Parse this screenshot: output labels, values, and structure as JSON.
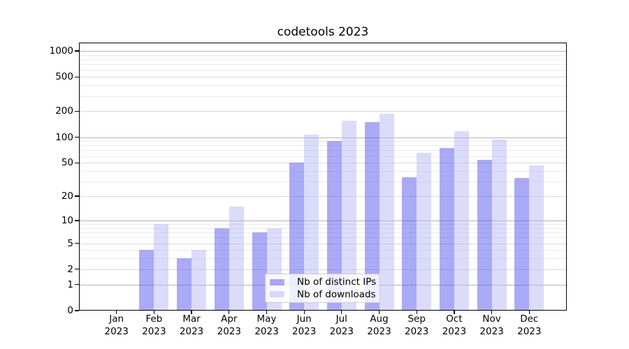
{
  "title": "codetools 2023",
  "chart_data": {
    "type": "bar",
    "title": "codetools 2023",
    "categories": [
      "Jan",
      "Feb",
      "Mar",
      "Apr",
      "May",
      "Jun",
      "Jul",
      "Aug",
      "Sep",
      "Oct",
      "Nov",
      "Dec"
    ],
    "category_year": "2023",
    "series": [
      {
        "name": "Nb of distinct IPs",
        "color": "rgba(85,85,240,0.5)",
        "solid_color": "#aaaaf8",
        "values": [
          0,
          4,
          3,
          8,
          7,
          50,
          90,
          151,
          34,
          75,
          54,
          33
        ]
      },
      {
        "name": "Nb of downloads",
        "color": "rgba(183,183,245,0.5)",
        "solid_color": "#dbdbfa",
        "values": [
          0,
          9,
          4,
          15,
          8,
          107,
          154,
          187,
          65,
          118,
          93,
          47
        ]
      }
    ],
    "y_axis": {
      "scale": "log10(value+1)",
      "tick_values": [
        0,
        1,
        2,
        5,
        10,
        20,
        50,
        100,
        200,
        500,
        1000
      ],
      "tick_labels": [
        "0",
        "1",
        "2",
        "5",
        "10",
        "20",
        "50",
        "100",
        "200",
        "500",
        "1000"
      ],
      "major_ticks": [
        1,
        10,
        100,
        1000
      ],
      "mid_ticks": [
        2,
        5,
        20,
        50,
        200,
        500
      ],
      "minor_ticks": [
        3,
        4,
        6,
        7,
        8,
        9,
        30,
        40,
        60,
        70,
        80,
        90,
        300,
        400,
        600,
        700,
        800,
        900
      ],
      "ylim": [
        0,
        1200
      ]
    },
    "legend": {
      "position": "lower center"
    },
    "grid": "horizontal only"
  },
  "colors": {
    "background": "#ffffff",
    "spine": "#000000",
    "text": "#000000",
    "grid_major": "#b3b3b3",
    "grid_mid": "#d9d9d9",
    "grid_minor": "#ebebeb",
    "legend_border": "#cccccc",
    "legend_bg": "rgba(255,255,255,0.8)"
  }
}
